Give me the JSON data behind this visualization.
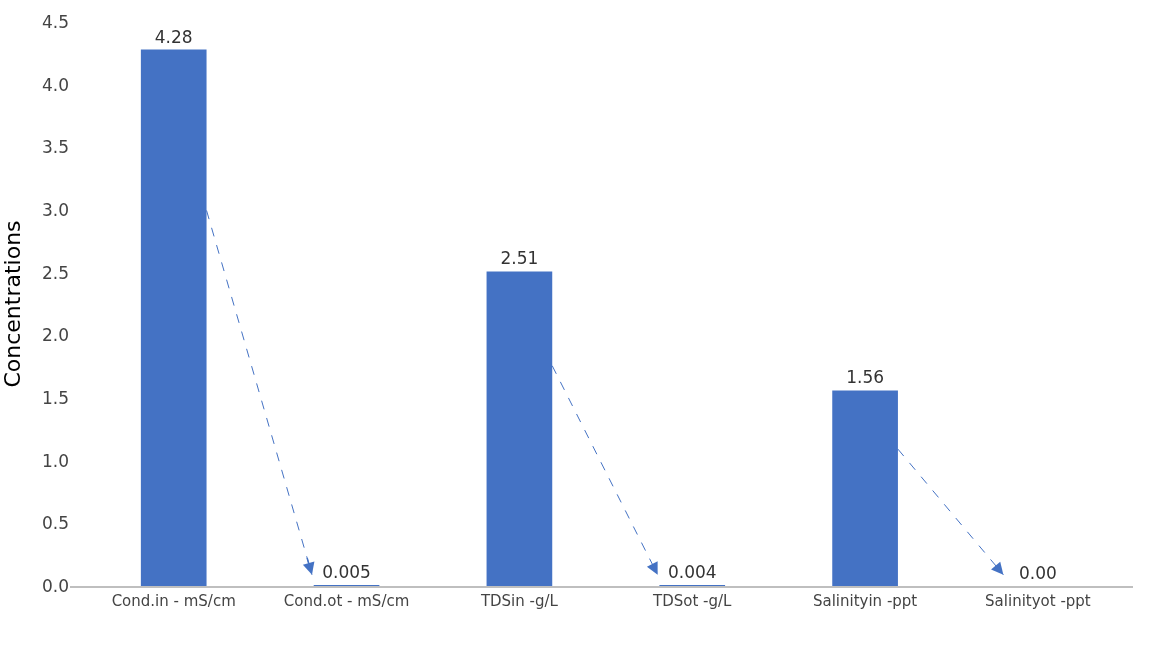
{
  "chart_data": {
    "type": "bar",
    "ylabel": "Concentrations",
    "categories": [
      "Cond.in - mS/cm",
      "Cond.ot - mS/cm",
      "TDSin -g/L",
      "TDSot -g/L",
      "Salinityin -ppt",
      "Salinityot -ppt"
    ],
    "values": [
      4.28,
      0.005,
      2.51,
      0.004,
      1.56,
      0.0
    ],
    "value_labels": [
      "4.28",
      "0.005",
      "2.51",
      "0.004",
      "1.56",
      "0.00"
    ],
    "color": "#4472c4",
    "ylim": [
      0,
      4.5
    ],
    "yticks": [
      {
        "value": 0,
        "label": "0.0"
      },
      {
        "value": 0.5,
        "label": "0.5"
      },
      {
        "value": 1,
        "label": "1.0"
      },
      {
        "value": 1.5,
        "label": "1.5"
      },
      {
        "value": 2,
        "label": "2.0"
      },
      {
        "value": 2.5,
        "label": "2.5"
      },
      {
        "value": 3,
        "label": "3.0"
      },
      {
        "value": 3.5,
        "label": "3.5"
      },
      {
        "value": 4,
        "label": "4.0"
      },
      {
        "value": 4.5,
        "label": "4.5"
      }
    ]
  }
}
